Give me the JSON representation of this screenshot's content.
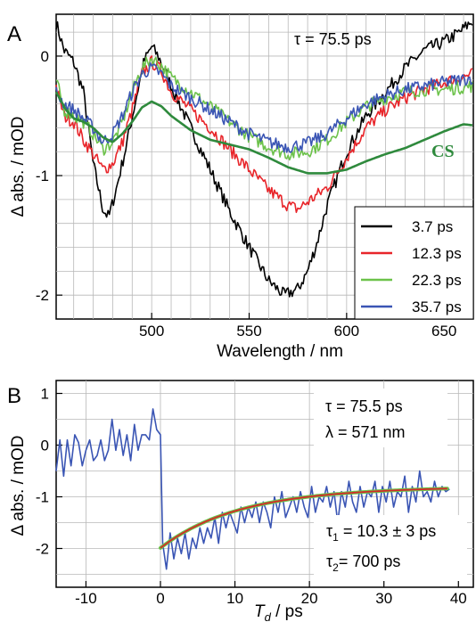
{
  "colors": {
    "black": "#000000",
    "red": "#e8252a",
    "lightgreen": "#6cc24a",
    "blue": "#3a55b4",
    "darkgreen": "#2f8a3d",
    "fit": "#d42a2a",
    "grid": "#b8b8b8"
  },
  "chart_data": [
    {
      "type": "line",
      "panel_label": "A",
      "xlabel": "Wavelength / nm",
      "ylabel": "Δ abs. / mOD",
      "xlim": [
        451,
        665
      ],
      "ylim": [
        -2.2,
        0.35
      ],
      "xticks": [
        500,
        550,
        600,
        650
      ],
      "yticks": [
        0,
        -1,
        -2
      ],
      "grid": true,
      "annotations": {
        "tau": "τ = 75.5 ps",
        "cs_label": "CS"
      },
      "legend_position": "bottom-right",
      "series": [
        {
          "name": "3.7 ps",
          "color": "black",
          "noise": 0.05,
          "points": [
            [
              451,
              0.28
            ],
            [
              455,
              0.05
            ],
            [
              460,
              -0.05
            ],
            [
              465,
              -0.3
            ],
            [
              470,
              -0.9
            ],
            [
              475,
              -1.28
            ],
            [
              478,
              -1.35
            ],
            [
              482,
              -1.1
            ],
            [
              487,
              -0.75
            ],
            [
              492,
              -0.35
            ],
            [
              496,
              -0.05
            ],
            [
              500,
              0.08
            ],
            [
              504,
              -0.02
            ],
            [
              510,
              -0.25
            ],
            [
              520,
              -0.6
            ],
            [
              530,
              -0.95
            ],
            [
              540,
              -1.3
            ],
            [
              550,
              -1.6
            ],
            [
              560,
              -1.88
            ],
            [
              568,
              -2.0
            ],
            [
              575,
              -1.95
            ],
            [
              580,
              -1.8
            ],
            [
              585,
              -1.55
            ],
            [
              590,
              -1.25
            ],
            [
              600,
              -0.8
            ],
            [
              610,
              -0.5
            ],
            [
              620,
              -0.3
            ],
            [
              630,
              -0.1
            ],
            [
              640,
              0.05
            ],
            [
              650,
              0.12
            ],
            [
              658,
              0.2
            ],
            [
              665,
              0.3
            ]
          ]
        },
        {
          "name": "12.3 ps",
          "color": "red",
          "noise": 0.05,
          "points": [
            [
              451,
              -0.25
            ],
            [
              455,
              -0.5
            ],
            [
              460,
              -0.55
            ],
            [
              465,
              -0.7
            ],
            [
              470,
              -0.82
            ],
            [
              475,
              -0.95
            ],
            [
              480,
              -0.9
            ],
            [
              485,
              -0.72
            ],
            [
              490,
              -0.45
            ],
            [
              495,
              -0.15
            ],
            [
              500,
              -0.05
            ],
            [
              505,
              -0.12
            ],
            [
              510,
              -0.3
            ],
            [
              520,
              -0.45
            ],
            [
              530,
              -0.6
            ],
            [
              540,
              -0.78
            ],
            [
              550,
              -0.95
            ],
            [
              560,
              -1.12
            ],
            [
              570,
              -1.25
            ],
            [
              575,
              -1.28
            ],
            [
              580,
              -1.22
            ],
            [
              590,
              -1.1
            ],
            [
              600,
              -0.85
            ],
            [
              610,
              -0.6
            ],
            [
              620,
              -0.45
            ],
            [
              630,
              -0.35
            ],
            [
              640,
              -0.28
            ],
            [
              650,
              -0.22
            ],
            [
              665,
              -0.15
            ]
          ]
        },
        {
          "name": "22.3 ps",
          "color": "lightgreen",
          "noise": 0.05,
          "points": [
            [
              451,
              -0.2
            ],
            [
              455,
              -0.45
            ],
            [
              460,
              -0.5
            ],
            [
              465,
              -0.55
            ],
            [
              470,
              -0.65
            ],
            [
              475,
              -0.78
            ],
            [
              480,
              -0.72
            ],
            [
              485,
              -0.55
            ],
            [
              490,
              -0.3
            ],
            [
              495,
              -0.1
            ],
            [
              500,
              -0.02
            ],
            [
              505,
              -0.08
            ],
            [
              510,
              -0.18
            ],
            [
              520,
              -0.3
            ],
            [
              530,
              -0.42
            ],
            [
              540,
              -0.55
            ],
            [
              550,
              -0.67
            ],
            [
              560,
              -0.76
            ],
            [
              570,
              -0.82
            ],
            [
              580,
              -0.8
            ],
            [
              590,
              -0.7
            ],
            [
              600,
              -0.55
            ],
            [
              610,
              -0.42
            ],
            [
              620,
              -0.35
            ],
            [
              630,
              -0.3
            ],
            [
              640,
              -0.28
            ],
            [
              650,
              -0.28
            ],
            [
              665,
              -0.25
            ]
          ]
        },
        {
          "name": "35.7 ps",
          "color": "blue",
          "noise": 0.05,
          "points": [
            [
              451,
              -0.3
            ],
            [
              455,
              -0.4
            ],
            [
              460,
              -0.45
            ],
            [
              465,
              -0.52
            ],
            [
              470,
              -0.6
            ],
            [
              475,
              -0.72
            ],
            [
              480,
              -0.65
            ],
            [
              485,
              -0.5
            ],
            [
              490,
              -0.3
            ],
            [
              495,
              -0.15
            ],
            [
              500,
              -0.1
            ],
            [
              505,
              -0.15
            ],
            [
              510,
              -0.25
            ],
            [
              520,
              -0.35
            ],
            [
              530,
              -0.45
            ],
            [
              540,
              -0.55
            ],
            [
              550,
              -0.65
            ],
            [
              560,
              -0.72
            ],
            [
              570,
              -0.76
            ],
            [
              580,
              -0.73
            ],
            [
              590,
              -0.65
            ],
            [
              600,
              -0.52
            ],
            [
              610,
              -0.4
            ],
            [
              620,
              -0.33
            ],
            [
              630,
              -0.28
            ],
            [
              640,
              -0.25
            ],
            [
              650,
              -0.22
            ],
            [
              665,
              -0.18
            ]
          ]
        },
        {
          "color": "darkgreen",
          "noise": 0.0,
          "points": [
            [
              451,
              -0.3
            ],
            [
              456,
              -0.45
            ],
            [
              460,
              -0.52
            ],
            [
              465,
              -0.55
            ],
            [
              470,
              -0.6
            ],
            [
              475,
              -0.68
            ],
            [
              480,
              -0.72
            ],
            [
              485,
              -0.65
            ],
            [
              490,
              -0.55
            ],
            [
              495,
              -0.43
            ],
            [
              500,
              -0.38
            ],
            [
              505,
              -0.42
            ],
            [
              510,
              -0.5
            ],
            [
              520,
              -0.62
            ],
            [
              530,
              -0.7
            ],
            [
              540,
              -0.74
            ],
            [
              550,
              -0.78
            ],
            [
              560,
              -0.85
            ],
            [
              570,
              -0.93
            ],
            [
              580,
              -0.98
            ],
            [
              590,
              -0.98
            ],
            [
              600,
              -0.95
            ],
            [
              610,
              -0.88
            ],
            [
              620,
              -0.82
            ],
            [
              630,
              -0.77
            ],
            [
              640,
              -0.7
            ],
            [
              650,
              -0.63
            ],
            [
              660,
              -0.57
            ],
            [
              665,
              -0.58
            ]
          ]
        }
      ]
    },
    {
      "type": "line",
      "panel_label": "B",
      "xlabel_main": "T",
      "xlabel_sub": "d",
      "xlabel_rest": " / ps",
      "ylabel": "Δ abs. / mOD",
      "xlim": [
        -14,
        42
      ],
      "ylim": [
        -2.75,
        1.25
      ],
      "xticks": [
        -10,
        0,
        10,
        20,
        30,
        40
      ],
      "yticks": [
        1,
        0,
        -1,
        -2
      ],
      "grid": true,
      "annotations": {
        "tau": "τ = 75.5 ps",
        "lambda": "λ = 571 nm",
        "tau1_main": "τ",
        "tau1_sub": "1",
        "tau1_rest": " = 10.3 ± 3 ps",
        "tau2_main": "τ",
        "tau2_sub": "2",
        "tau2_rest": "= 700 ps"
      },
      "data": {
        "color": "blue",
        "points": [
          [
            -14,
            -0.5
          ],
          [
            -13.5,
            0.1
          ],
          [
            -13,
            -0.6
          ],
          [
            -12.5,
            0.1
          ],
          [
            -12,
            -0.4
          ],
          [
            -11.5,
            0.2
          ],
          [
            -11,
            0.05
          ],
          [
            -10.5,
            -0.4
          ],
          [
            -10,
            -0.1
          ],
          [
            -9.5,
            0.1
          ],
          [
            -9,
            -0.3
          ],
          [
            -8.5,
            -0.2
          ],
          [
            -8,
            0.1
          ],
          [
            -7.5,
            -0.3
          ],
          [
            -7,
            -0.1
          ],
          [
            -6.5,
            0.5
          ],
          [
            -6,
            -0.1
          ],
          [
            -5.5,
            0.3
          ],
          [
            -5,
            -0.2
          ],
          [
            -4.5,
            0.2
          ],
          [
            -4,
            -0.3
          ],
          [
            -3.5,
            0.4
          ],
          [
            -3,
            -0.1
          ],
          [
            -2.5,
            0.2
          ],
          [
            -2,
            0.2
          ],
          [
            -1.5,
            0.1
          ],
          [
            -1,
            0.7
          ],
          [
            -0.5,
            0.3
          ],
          [
            0,
            0.2
          ],
          [
            0.3,
            -1.9
          ],
          [
            0.8,
            -2.4
          ],
          [
            1.3,
            -1.7
          ],
          [
            1.8,
            -2.2
          ],
          [
            2.3,
            -1.8
          ],
          [
            2.8,
            -2.1
          ],
          [
            3.3,
            -1.7
          ],
          [
            3.8,
            -2.2
          ],
          [
            4.3,
            -1.8
          ],
          [
            4.8,
            -2.0
          ],
          [
            5.3,
            -1.6
          ],
          [
            5.8,
            -1.9
          ],
          [
            6.3,
            -1.6
          ],
          [
            6.8,
            -1.8
          ],
          [
            7.3,
            -1.4
          ],
          [
            7.8,
            -1.9
          ],
          [
            8.3,
            -1.3
          ],
          [
            8.8,
            -1.6
          ],
          [
            9.3,
            -1.3
          ],
          [
            9.8,
            -1.5
          ],
          [
            10.3,
            -1.7
          ],
          [
            10.8,
            -1.2
          ],
          [
            11.3,
            -1.5
          ],
          [
            11.8,
            -1.2
          ],
          [
            12.3,
            -1.4
          ],
          [
            12.8,
            -1.1
          ],
          [
            13.3,
            -1.5
          ],
          [
            13.8,
            -1.1
          ],
          [
            14.3,
            -1.3
          ],
          [
            14.8,
            -1.6
          ],
          [
            15.3,
            -1.0
          ],
          [
            15.8,
            -1.3
          ],
          [
            16.3,
            -0.9
          ],
          [
            16.8,
            -1.4
          ],
          [
            17.3,
            -1.2
          ],
          [
            17.8,
            -1.0
          ],
          [
            18.3,
            -1.3
          ],
          [
            18.8,
            -0.9
          ],
          [
            19.3,
            -1.2
          ],
          [
            19.8,
            -1.4
          ],
          [
            20.3,
            -0.8
          ],
          [
            20.8,
            -1.3
          ],
          [
            21.3,
            -1.0
          ],
          [
            21.8,
            -1.1
          ],
          [
            22.3,
            -0.8
          ],
          [
            22.8,
            -1.2
          ],
          [
            23.3,
            -0.9
          ],
          [
            23.8,
            -1.5
          ],
          [
            24.3,
            -0.9
          ],
          [
            24.8,
            -1.2
          ],
          [
            25.3,
            -0.7
          ],
          [
            25.8,
            -1.1
          ],
          [
            26.3,
            -1.3
          ],
          [
            26.8,
            -0.8
          ],
          [
            27.3,
            -1.2
          ],
          [
            27.8,
            -0.9
          ],
          [
            28.3,
            -1.0
          ],
          [
            28.8,
            -0.7
          ],
          [
            29.3,
            -1.3
          ],
          [
            29.8,
            -0.8
          ],
          [
            30.3,
            -1.1
          ],
          [
            30.8,
            -0.7
          ],
          [
            31.3,
            -1.2
          ],
          [
            31.8,
            -0.9
          ],
          [
            32.3,
            -1.0
          ],
          [
            32.8,
            -0.6
          ],
          [
            33.3,
            -1.3
          ],
          [
            33.8,
            -0.8
          ],
          [
            34.3,
            -1.1
          ],
          [
            34.8,
            -0.5
          ],
          [
            35.3,
            -1.0
          ],
          [
            35.8,
            -0.9
          ],
          [
            36.3,
            -1.1
          ],
          [
            36.8,
            -0.7
          ],
          [
            37.3,
            -1.0
          ],
          [
            37.8,
            -0.8
          ],
          [
            38.3,
            -0.9
          ],
          [
            38.8,
            -0.85
          ]
        ]
      },
      "fit": {
        "color": "fit",
        "amplitude": -1.13,
        "tau1": 10.3,
        "offset": -0.86,
        "tau2": 700,
        "x_start": 0,
        "x_end": 38.5
      }
    }
  ]
}
